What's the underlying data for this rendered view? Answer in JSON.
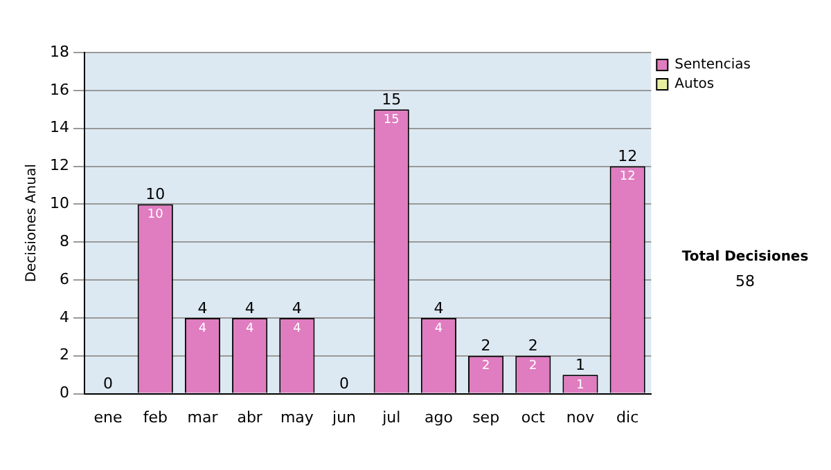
{
  "chart_data": {
    "type": "bar",
    "ylabel": "Decisiones Anual",
    "categories": [
      "ene",
      "feb",
      "mar",
      "abr",
      "may",
      "jun",
      "jul",
      "ago",
      "sep",
      "oct",
      "nov",
      "dic"
    ],
    "series": [
      {
        "name": "Sentencias",
        "color": "#e07cc0",
        "values": [
          0,
          10,
          4,
          4,
          4,
          0,
          15,
          4,
          2,
          2,
          1,
          12
        ],
        "value_labels": [
          null,
          "10",
          "4",
          "4",
          "4",
          null,
          "15",
          "4",
          "2",
          "2",
          "1",
          "12"
        ]
      },
      {
        "name": "Autos",
        "color": "#e8f0a0",
        "values": [
          0,
          0,
          0,
          0,
          0,
          0,
          0,
          0,
          0,
          0,
          0,
          0
        ]
      }
    ],
    "stacked": true,
    "totals": [
      "0",
      "10",
      "4",
      "4",
      "4",
      "0",
      "15",
      "4",
      "2",
      "2",
      "1",
      "12"
    ],
    "ylim": [
      0,
      18
    ],
    "yticks": [
      0,
      2,
      4,
      6,
      8,
      10,
      12,
      14,
      16,
      18
    ],
    "grid": "y",
    "legend": "top right",
    "annotations": [
      "Total Decisiones",
      "58"
    ]
  }
}
